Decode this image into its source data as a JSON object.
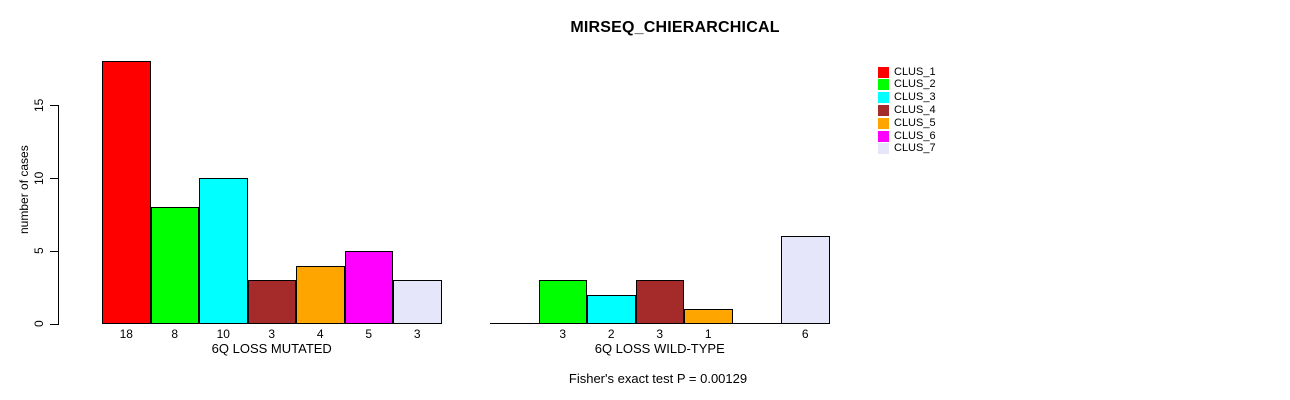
{
  "page": {
    "background": "#FFFFFF",
    "text_color": "#000000"
  },
  "chart_data": {
    "type": "bar",
    "title": "MIRSEQ_CHIERARCHICAL",
    "ylabel": "number of cases",
    "xlabel": "",
    "ylim": [
      0,
      18
    ],
    "yticks": [
      0,
      5,
      10,
      15
    ],
    "grid": false,
    "legend_position": "right",
    "categories": [
      "6Q LOSS MUTATED",
      "6Q LOSS WILD-TYPE"
    ],
    "series": [
      {
        "name": "CLUS_1",
        "color": "#FF0000",
        "values": [
          18,
          0
        ]
      },
      {
        "name": "CLUS_2",
        "color": "#00FF00",
        "values": [
          8,
          3
        ]
      },
      {
        "name": "CLUS_3",
        "color": "#00FFFF",
        "values": [
          10,
          2
        ]
      },
      {
        "name": "CLUS_4",
        "color": "#A52A2A",
        "values": [
          3,
          3
        ]
      },
      {
        "name": "CLUS_5",
        "color": "#FFA500",
        "values": [
          4,
          1
        ]
      },
      {
        "name": "CLUS_6",
        "color": "#FF00FF",
        "values": [
          5,
          0
        ]
      },
      {
        "name": "CLUS_7",
        "color": "#E6E6FA",
        "values": [
          3,
          6
        ]
      }
    ],
    "value_labels": [
      [
        "18",
        "8",
        "10",
        "3",
        "4",
        "5",
        "3"
      ],
      [
        "",
        "3",
        "2",
        "3",
        "1",
        "",
        "6"
      ]
    ],
    "annotation": "Fisher's exact test P = 0.00129"
  },
  "legend": {
    "items": [
      {
        "label": "CLUS_1",
        "color": "#FF0000"
      },
      {
        "label": "CLUS_2",
        "color": "#00FF00"
      },
      {
        "label": "CLUS_3",
        "color": "#00FFFF"
      },
      {
        "label": "CLUS_4",
        "color": "#A52A2A"
      },
      {
        "label": "CLUS_5",
        "color": "#FFA500"
      },
      {
        "label": "CLUS_6",
        "color": "#FF00FF"
      },
      {
        "label": "CLUS_7",
        "color": "#E6E6FA"
      }
    ]
  }
}
